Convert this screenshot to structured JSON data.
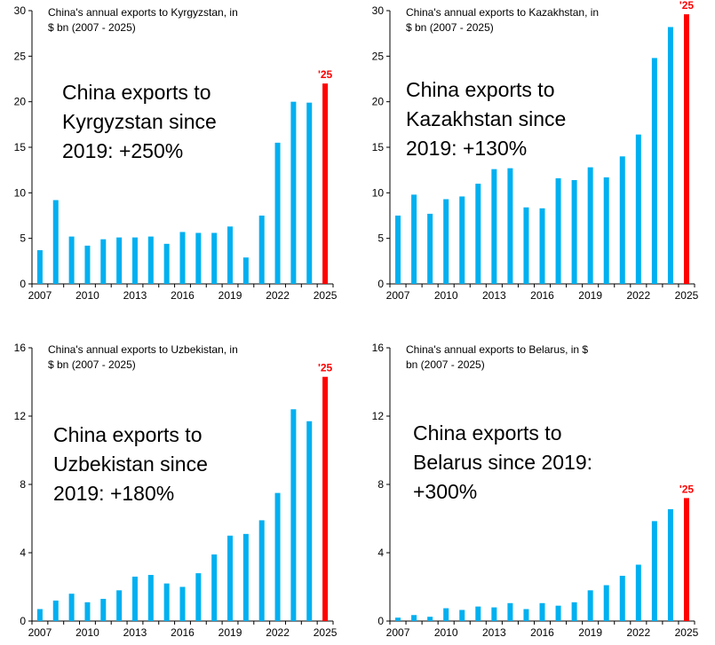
{
  "chart_data": [
    {
      "type": "bar",
      "title": [
        "China's annual exports to Kyrgyzstan, in",
        "$ bn (2007 - 2025)"
      ],
      "annotation": [
        "China exports to",
        "Kyrgyzstan since",
        "2019: +250%"
      ],
      "highlight_label": "'25",
      "x": [
        2007,
        2008,
        2009,
        2010,
        2011,
        2012,
        2013,
        2014,
        2015,
        2016,
        2017,
        2018,
        2019,
        2020,
        2021,
        2022,
        2023,
        2024,
        2025
      ],
      "values": [
        3.7,
        9.2,
        5.2,
        4.2,
        4.9,
        5.1,
        5.1,
        5.2,
        4.4,
        5.7,
        5.6,
        5.6,
        6.3,
        2.9,
        7.5,
        15.5,
        20.0,
        19.9,
        22.0
      ],
      "x_tick_labels": [
        "2007",
        "2010",
        "2013",
        "2016",
        "2019",
        "2022",
        "2025"
      ],
      "y_ticks": [
        0,
        5,
        10,
        15,
        20,
        25,
        30
      ],
      "ylim": [
        0,
        30
      ],
      "colors": {
        "bar": "#00b0f0",
        "highlight": "#ff0000"
      }
    },
    {
      "type": "bar",
      "title": [
        "China's annual exports to Kazakhstan, in",
        "$ bn (2007 - 2025)"
      ],
      "annotation": [
        "China exports to",
        "Kazakhstan since",
        "2019: +130%"
      ],
      "highlight_label": "'25",
      "x": [
        2007,
        2008,
        2009,
        2010,
        2011,
        2012,
        2013,
        2014,
        2015,
        2016,
        2017,
        2018,
        2019,
        2020,
        2021,
        2022,
        2023,
        2024,
        2025
      ],
      "values": [
        7.5,
        9.8,
        7.7,
        9.3,
        9.6,
        11.0,
        12.6,
        12.7,
        8.4,
        8.3,
        11.6,
        11.4,
        12.8,
        11.7,
        14.0,
        16.4,
        24.8,
        28.2,
        29.6
      ],
      "x_tick_labels": [
        "2007",
        "2010",
        "2013",
        "2016",
        "2019",
        "2022",
        "2025"
      ],
      "y_ticks": [
        0,
        5,
        10,
        15,
        20,
        25,
        30
      ],
      "ylim": [
        0,
        30
      ],
      "colors": {
        "bar": "#00b0f0",
        "highlight": "#ff0000"
      }
    },
    {
      "type": "bar",
      "title": [
        "China's annual exports to Uzbekistan, in",
        "$ bn (2007 - 2025)"
      ],
      "annotation": [
        "China exports to",
        "Uzbekistan since",
        "2019: +180%"
      ],
      "highlight_label": "'25",
      "x": [
        2007,
        2008,
        2009,
        2010,
        2011,
        2012,
        2013,
        2014,
        2015,
        2016,
        2017,
        2018,
        2019,
        2020,
        2021,
        2022,
        2023,
        2024,
        2025
      ],
      "values": [
        0.7,
        1.2,
        1.6,
        1.1,
        1.3,
        1.8,
        2.6,
        2.7,
        2.2,
        2.0,
        2.8,
        3.9,
        5.0,
        5.1,
        5.9,
        7.5,
        12.4,
        11.7,
        14.3
      ],
      "x_tick_labels": [
        "2007",
        "2010",
        "2013",
        "2016",
        "2019",
        "2022",
        "2025"
      ],
      "y_ticks": [
        0,
        4,
        8,
        12,
        16
      ],
      "ylim": [
        0,
        16
      ],
      "colors": {
        "bar": "#00b0f0",
        "highlight": "#ff0000"
      }
    },
    {
      "type": "bar",
      "title": [
        "China's annual exports to Belarus, in $",
        "bn (2007 - 2025)"
      ],
      "annotation": [
        "China exports to",
        "Belarus since 2019:",
        "+300%"
      ],
      "highlight_label": "'25",
      "x": [
        2007,
        2008,
        2009,
        2010,
        2011,
        2012,
        2013,
        2014,
        2015,
        2016,
        2017,
        2018,
        2019,
        2020,
        2021,
        2022,
        2023,
        2024,
        2025
      ],
      "values": [
        0.2,
        0.35,
        0.25,
        0.75,
        0.65,
        0.85,
        0.8,
        1.05,
        0.7,
        1.05,
        0.9,
        1.1,
        1.8,
        2.1,
        2.65,
        3.3,
        5.85,
        6.55,
        7.2
      ],
      "x_tick_labels": [
        "2007",
        "2010",
        "2013",
        "2016",
        "2019",
        "2022",
        "2025"
      ],
      "y_ticks": [
        0,
        4,
        8,
        12,
        16
      ],
      "ylim": [
        0,
        16
      ],
      "colors": {
        "bar": "#00b0f0",
        "highlight": "#ff0000"
      }
    }
  ]
}
